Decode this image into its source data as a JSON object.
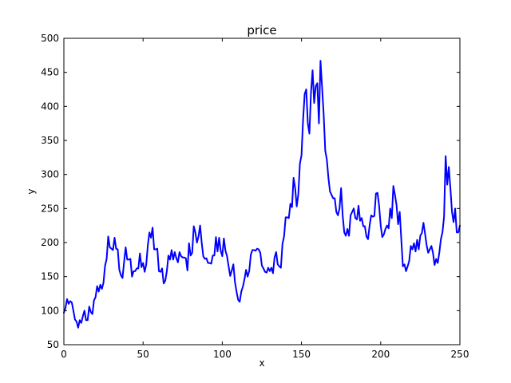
{
  "chart_data": {
    "type": "line",
    "title": "price",
    "xlabel": "x",
    "ylabel": "y",
    "xlim": [
      0,
      250
    ],
    "ylim": [
      50,
      500
    ],
    "xticks": [
      0,
      50,
      100,
      150,
      200,
      250
    ],
    "yticks": [
      50,
      100,
      150,
      200,
      250,
      300,
      350,
      400,
      450,
      500
    ],
    "grid": false,
    "line_color": "#0000ff",
    "series": [
      {
        "x": [
          0,
          1,
          2,
          3,
          4,
          5,
          6,
          7,
          8,
          9,
          10,
          11,
          12,
          13,
          14,
          15,
          16,
          17,
          18,
          19,
          20,
          21,
          22,
          23,
          24,
          25,
          26,
          27,
          28,
          29,
          30,
          31,
          32,
          33,
          34,
          35,
          36,
          37,
          38,
          39,
          40,
          41,
          42,
          43,
          44,
          45,
          46,
          47,
          48,
          49,
          50,
          51,
          52,
          53,
          54,
          55,
          56,
          57,
          58,
          59,
          60,
          61,
          62,
          63,
          64,
          65,
          66,
          67,
          68,
          69,
          70,
          71,
          72,
          73,
          74,
          75,
          76,
          77,
          78,
          79,
          80,
          81,
          82,
          83,
          84,
          85,
          86,
          87,
          88,
          89,
          90,
          91,
          92,
          93,
          94,
          95,
          96,
          97,
          98,
          99,
          100,
          101,
          102,
          103,
          104,
          105,
          106,
          107,
          108,
          109,
          110,
          111,
          112,
          113,
          114,
          115,
          116,
          117,
          118,
          119,
          120,
          121,
          122,
          123,
          124,
          125,
          126,
          127,
          128,
          129,
          130,
          131,
          132,
          133,
          134,
          135,
          136,
          137,
          138,
          139,
          140,
          141,
          142,
          143,
          144,
          145,
          146,
          147,
          148,
          149,
          150,
          151,
          152,
          153,
          154,
          155,
          156,
          157,
          158,
          159,
          160,
          161,
          162,
          163,
          164,
          165,
          166,
          167,
          168,
          169,
          170,
          171,
          172,
          173,
          174,
          175,
          176,
          177,
          178,
          179,
          180,
          181,
          182,
          183,
          184,
          185,
          186,
          187,
          188,
          189,
          190,
          191,
          192,
          193,
          194,
          195,
          196,
          197,
          198,
          199,
          200,
          201,
          202,
          203,
          204,
          205,
          206,
          207,
          208,
          209,
          210,
          211,
          212,
          213,
          214,
          215,
          216,
          217,
          218,
          219,
          220,
          221,
          222,
          223,
          224,
          225,
          226,
          227,
          228,
          229,
          230,
          231,
          232,
          233,
          234,
          235,
          236,
          237,
          238,
          239,
          240,
          241,
          242,
          243,
          244,
          245,
          246,
          247,
          248,
          249,
          250
        ],
        "values": [
          97,
          104,
          117,
          110,
          114,
          112,
          100,
          87,
          84,
          75,
          86,
          82,
          92,
          100,
          86,
          86,
          106,
          98,
          95,
          115,
          120,
          136,
          128,
          138,
          132,
          141,
          166,
          176,
          209,
          193,
          191,
          189,
          207,
          191,
          190,
          160,
          152,
          148,
          171,
          193,
          175,
          175,
          176,
          150,
          158,
          158,
          162,
          162,
          184,
          164,
          170,
          157,
          168,
          196,
          215,
          207,
          222,
          190,
          190,
          191,
          158,
          157,
          162,
          140,
          144,
          158,
          181,
          175,
          189,
          175,
          186,
          177,
          171,
          186,
          180,
          178,
          178,
          177,
          159,
          199,
          181,
          185,
          224,
          215,
          200,
          209,
          225,
          200,
          180,
          176,
          177,
          170,
          170,
          169,
          181,
          181,
          208,
          187,
          207,
          188,
          180,
          206,
          188,
          180,
          165,
          151,
          159,
          168,
          142,
          128,
          116,
          113,
          128,
          135,
          146,
          160,
          150,
          158,
          182,
          189,
          189,
          188,
          191,
          190,
          185,
          166,
          162,
          157,
          156,
          163,
          158,
          163,
          155,
          178,
          186,
          168,
          165,
          163,
          198,
          209,
          237,
          237,
          236,
          257,
          252,
          295,
          280,
          253,
          271,
          316,
          328,
          380,
          418,
          425,
          375,
          360,
          420,
          453,
          405,
          430,
          434,
          375,
          467,
          428,
          388,
          335,
          322,
          295,
          275,
          270,
          265,
          265,
          245,
          240,
          250,
          280,
          240,
          215,
          210,
          220,
          210,
          240,
          245,
          250,
          236,
          234,
          254,
          232,
          236,
          224,
          224,
          209,
          205,
          225,
          240,
          238,
          239,
          272,
          273,
          254,
          225,
          208,
          212,
          220,
          225,
          221,
          250,
          236,
          283,
          270,
          255,
          227,
          245,
          205,
          165,
          168,
          158,
          165,
          173,
          195,
          190,
          199,
          187,
          204,
          190,
          210,
          214,
          229,
          213,
          196,
          185,
          190,
          195,
          185,
          167,
          176,
          170,
          185,
          205,
          215,
          238,
          327,
          285,
          311,
          280,
          245,
          230,
          250,
          215,
          215,
          225
        ]
      }
    ]
  }
}
